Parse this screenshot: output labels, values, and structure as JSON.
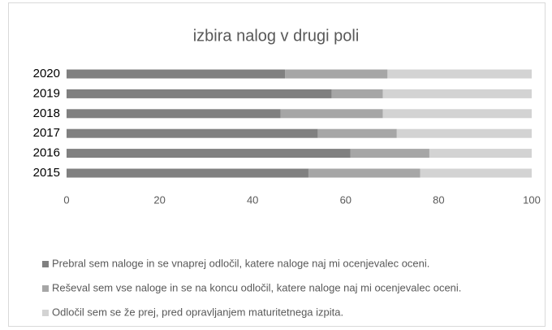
{
  "chart_data": {
    "type": "stacked_bar_horizontal",
    "title": "izbira nalog v drugi poli",
    "categories": [
      "2020",
      "2019",
      "2018",
      "2017",
      "2016",
      "2015"
    ],
    "series": [
      {
        "name": "Prebral sem naloge in se vnaprej odločil, katere naloge naj mi ocenjevalec oceni.",
        "color": "#808080",
        "values": [
          47,
          57,
          46,
          54,
          61,
          52
        ]
      },
      {
        "name": "Reševal sem vse naloge in se na koncu odločil, katere naloge naj mi ocenjevalec oceni.",
        "color": "#a6a6a6",
        "values": [
          22,
          11,
          22,
          17,
          17,
          24
        ]
      },
      {
        "name": "Odločil sem se že prej, pred opravljanjem maturitetnega izpita.",
        "color": "#d3d3d3",
        "values": [
          31,
          32,
          32,
          29,
          22,
          24
        ]
      }
    ],
    "xlim": [
      0,
      100
    ],
    "xticks": [
      0,
      20,
      40,
      60,
      80,
      100
    ],
    "grid": false,
    "legend": "bottom"
  }
}
